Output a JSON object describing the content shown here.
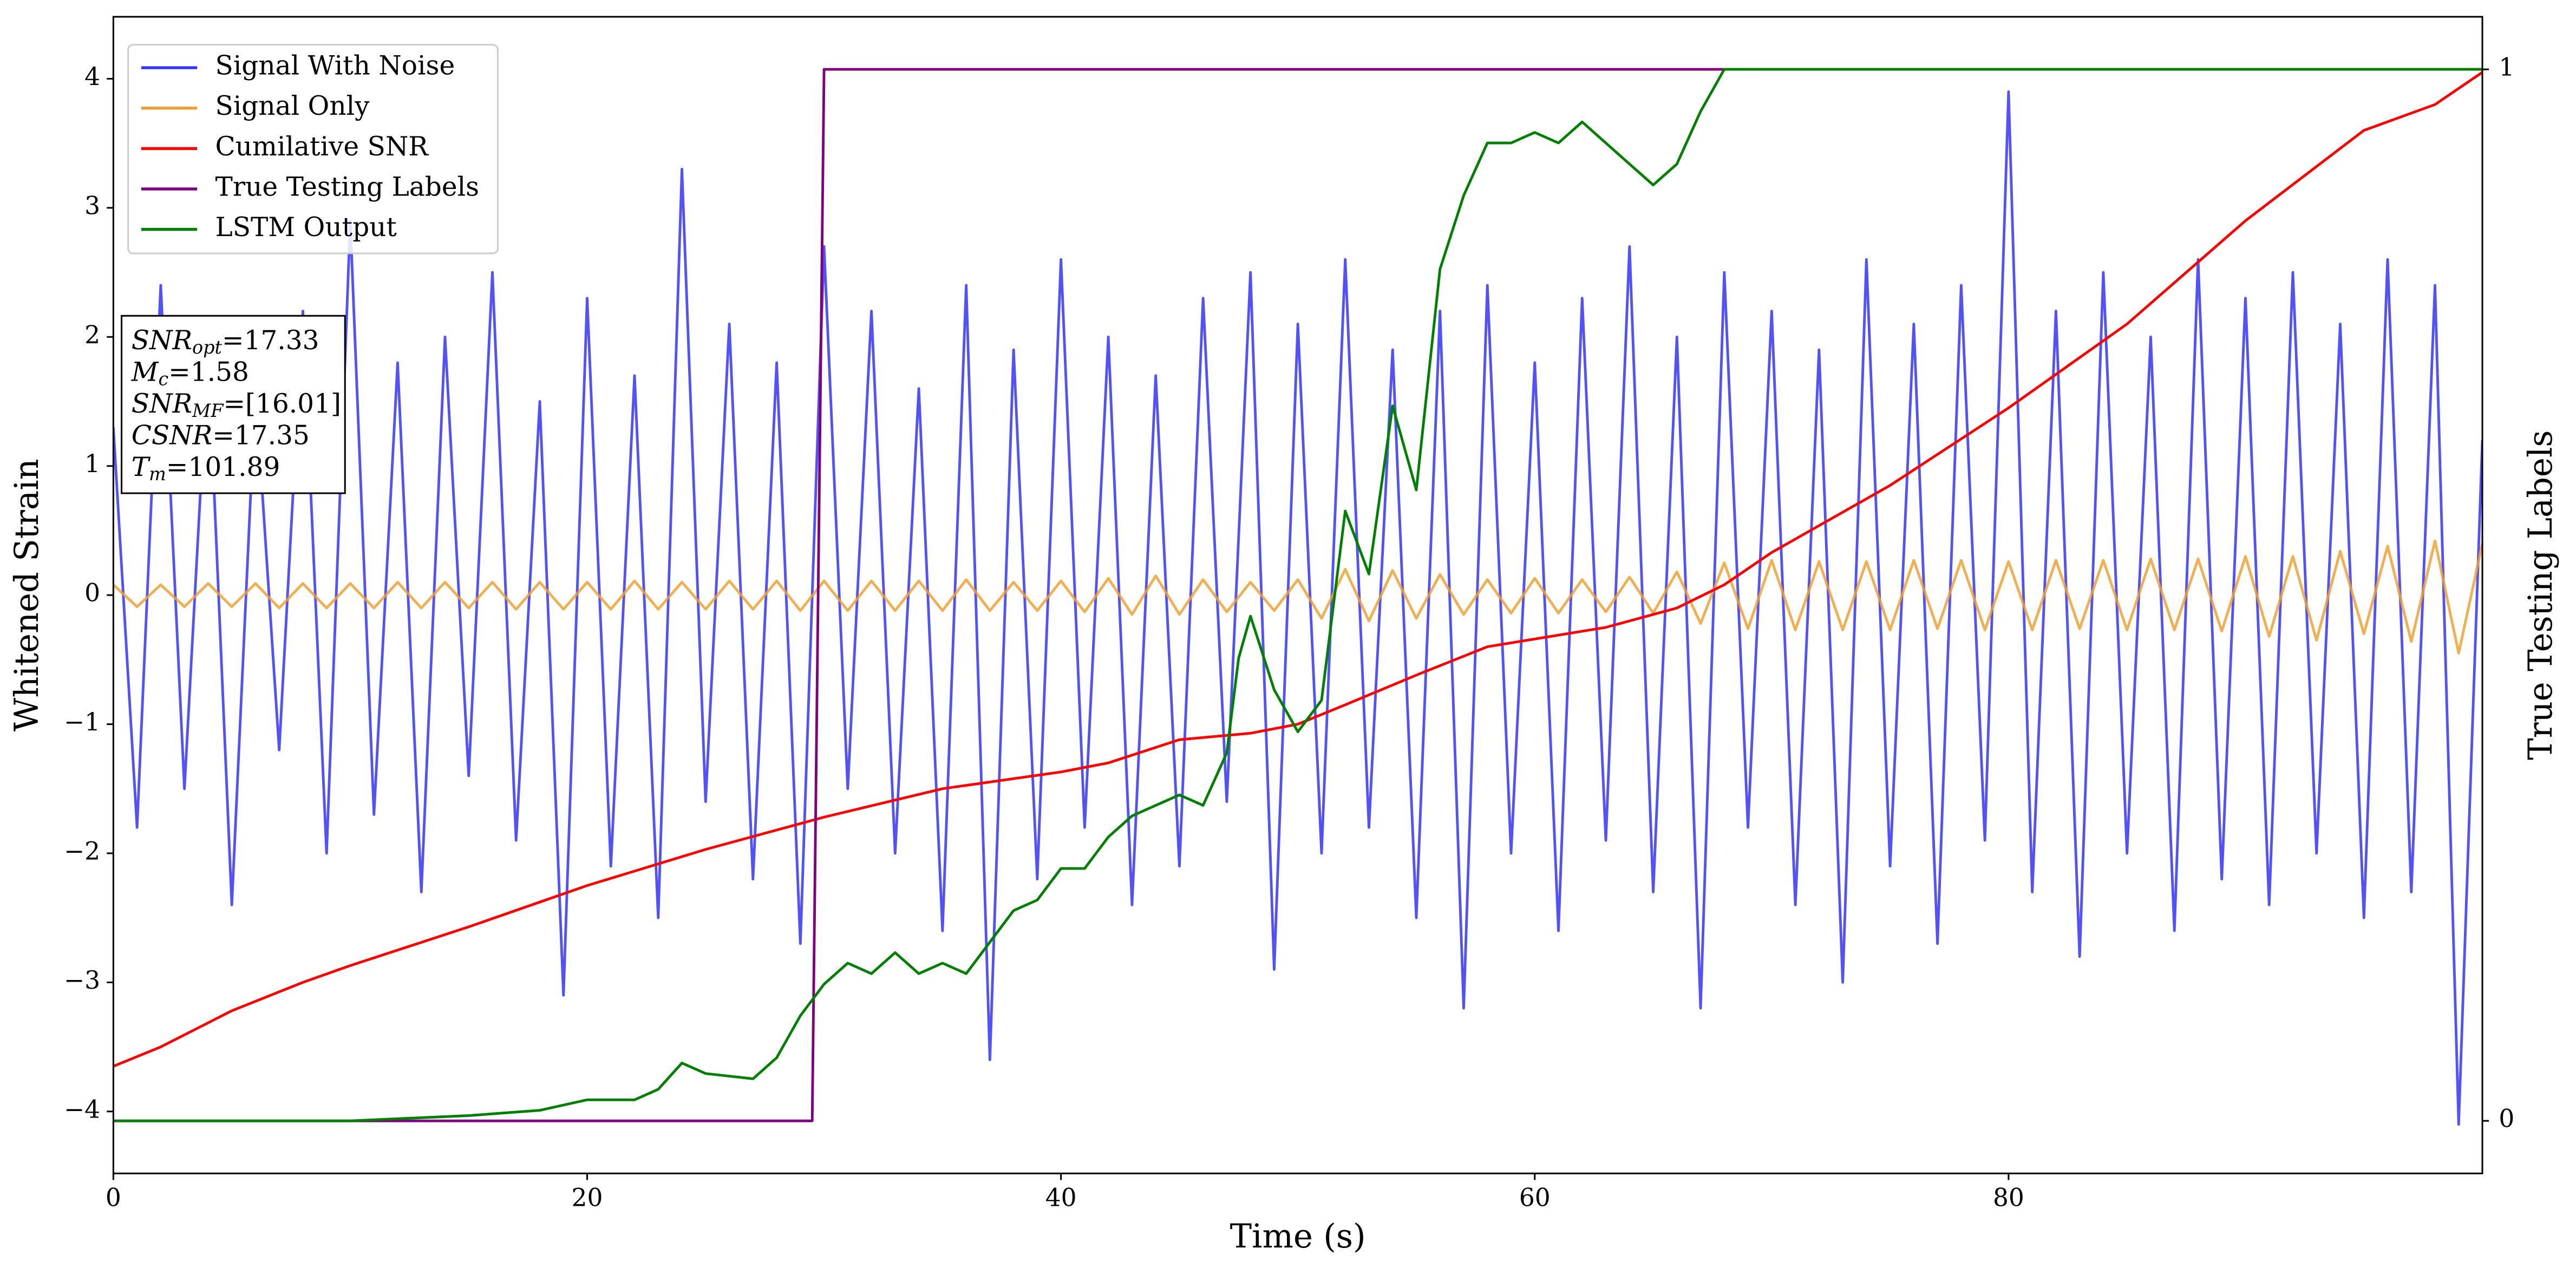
{
  "chart_data": {
    "type": "line",
    "xlabel": "Time (s)",
    "ylabel": "Whitened Strain",
    "y2label": "True Testing Labels",
    "xlim": [
      0,
      100
    ],
    "ylim": [
      -4.48,
      4.48
    ],
    "y2lim": [
      -0.05,
      1.05
    ],
    "xticks": [
      0,
      20,
      40,
      60,
      80
    ],
    "yticks": [
      {
        "value": -4,
        "label": "−4"
      },
      {
        "value": -3,
        "label": "−3"
      },
      {
        "value": -2,
        "label": "−2"
      },
      {
        "value": -1,
        "label": "−1"
      },
      0,
      1,
      2,
      3,
      4
    ],
    "y2ticks": [
      0,
      1
    ],
    "legend": "upper-left",
    "annotation": [
      {
        "main": "SNR",
        "sub": "opt",
        "rest": "=17.33"
      },
      {
        "main": "M",
        "sub": "c",
        "rest": "=1.58"
      },
      {
        "main": "SNR",
        "sub": "MF",
        "rest": "=[16.01]"
      },
      {
        "main": "CSNR",
        "sub": "",
        "rest": "=17.35"
      },
      {
        "main": "T",
        "sub": "m",
        "rest": "=101.89"
      }
    ],
    "series": [
      {
        "name": "Signal With Noise",
        "color": "#3333ff",
        "axis": "y",
        "x": [
          0,
          1,
          2,
          3,
          4,
          5,
          6,
          7,
          8,
          9,
          10,
          11,
          12,
          13,
          14,
          15,
          16,
          17,
          18,
          19,
          20,
          21,
          22,
          23,
          24,
          25,
          26,
          27,
          28,
          29,
          30,
          31,
          32,
          33,
          34,
          35,
          36,
          37,
          38,
          39,
          40,
          41,
          42,
          43,
          44,
          45,
          46,
          47,
          48,
          49,
          50,
          51,
          52,
          53,
          54,
          55,
          56,
          57,
          58,
          59,
          60,
          61,
          62,
          63,
          64,
          65,
          66,
          67,
          68,
          69,
          70,
          71,
          72,
          73,
          74,
          75,
          76,
          77,
          78,
          79,
          80,
          81,
          82,
          83,
          84,
          85,
          86,
          87,
          88,
          89,
          90,
          91,
          92,
          93,
          94,
          95,
          96,
          97,
          98,
          99,
          100
        ],
        "values": [
          1.3,
          -1.8,
          2.4,
          -1.5,
          1.9,
          -2.4,
          1.6,
          -1.2,
          2.2,
          -2.0,
          2.9,
          -1.7,
          1.8,
          -2.3,
          2.0,
          -1.4,
          2.5,
          -1.9,
          1.5,
          -3.1,
          2.3,
          -2.1,
          1.7,
          -2.5,
          3.3,
          -1.6,
          2.1,
          -2.2,
          1.8,
          -2.7,
          2.7,
          -1.5,
          2.2,
          -2.0,
          1.6,
          -2.6,
          2.4,
          -3.6,
          1.9,
          -2.2,
          2.6,
          -1.8,
          2.0,
          -2.4,
          1.7,
          -2.1,
          2.3,
          -1.6,
          2.5,
          -2.9,
          2.1,
          -2.0,
          2.6,
          -1.8,
          1.9,
          -2.5,
          2.2,
          -3.2,
          2.4,
          -2.0,
          1.8,
          -2.6,
          2.3,
          -1.9,
          2.7,
          -2.3,
          2.0,
          -3.2,
          2.5,
          -1.8,
          2.2,
          -2.4,
          1.9,
          -3.0,
          2.6,
          -2.1,
          2.1,
          -2.7,
          2.4,
          -1.9,
          3.9,
          -2.3,
          2.2,
          -2.8,
          2.5,
          -2.0,
          2.0,
          -2.6,
          2.6,
          -2.2,
          2.3,
          -2.4,
          2.5,
          -2.0,
          2.1,
          -2.5,
          2.6,
          -2.3,
          2.4,
          -4.1,
          1.2
        ]
      },
      {
        "name": "Signal Only",
        "color": "#f0a030",
        "axis": "y",
        "x": [
          0,
          1,
          2,
          3,
          4,
          5,
          6,
          7,
          8,
          9,
          10,
          11,
          12,
          13,
          14,
          15,
          16,
          17,
          18,
          19,
          20,
          21,
          22,
          23,
          24,
          25,
          26,
          27,
          28,
          29,
          30,
          31,
          32,
          33,
          34,
          35,
          36,
          37,
          38,
          39,
          40,
          41,
          42,
          43,
          44,
          45,
          46,
          47,
          48,
          49,
          50,
          51,
          52,
          53,
          54,
          55,
          56,
          57,
          58,
          59,
          60,
          61,
          62,
          63,
          64,
          65,
          66,
          67,
          68,
          69,
          70,
          71,
          72,
          73,
          74,
          75,
          76,
          77,
          78,
          79,
          80,
          81,
          82,
          83,
          84,
          85,
          86,
          87,
          88,
          89,
          90,
          91,
          92,
          93,
          94,
          95,
          96,
          97,
          98,
          99,
          100
        ],
        "values": [
          0.08,
          -0.09,
          0.08,
          -0.09,
          0.09,
          -0.09,
          0.09,
          -0.1,
          0.09,
          -0.1,
          0.09,
          -0.1,
          0.1,
          -0.1,
          0.1,
          -0.1,
          0.1,
          -0.11,
          0.1,
          -0.11,
          0.1,
          -0.11,
          0.11,
          -0.11,
          0.1,
          -0.11,
          0.11,
          -0.11,
          0.11,
          -0.12,
          0.11,
          -0.12,
          0.11,
          -0.12,
          0.11,
          -0.12,
          0.12,
          -0.12,
          0.1,
          -0.12,
          0.11,
          -0.13,
          0.13,
          -0.15,
          0.15,
          -0.15,
          0.12,
          -0.13,
          0.1,
          -0.12,
          0.12,
          -0.18,
          0.2,
          -0.2,
          0.19,
          -0.18,
          0.16,
          -0.15,
          0.12,
          -0.14,
          0.13,
          -0.14,
          0.12,
          -0.13,
          0.14,
          -0.14,
          0.18,
          -0.22,
          0.25,
          -0.26,
          0.27,
          -0.27,
          0.26,
          -0.27,
          0.26,
          -0.27,
          0.27,
          -0.26,
          0.27,
          -0.27,
          0.26,
          -0.27,
          0.27,
          -0.26,
          0.27,
          -0.27,
          0.28,
          -0.27,
          0.28,
          -0.28,
          0.3,
          -0.32,
          0.3,
          -0.35,
          0.34,
          -0.3,
          0.38,
          -0.36,
          0.42,
          -0.45,
          0.4
        ]
      },
      {
        "name": "Cumilative SNR",
        "color": "#ff0000",
        "axis": "y",
        "x": [
          0,
          2,
          5,
          8,
          10,
          15,
          20,
          25,
          30,
          35,
          40,
          42,
          45,
          48,
          50,
          52,
          55,
          58,
          60,
          63,
          65,
          66,
          68,
          70,
          75,
          80,
          85,
          90,
          95,
          98,
          100
        ],
        "values": [
          -3.65,
          -3.5,
          -3.22,
          -3.0,
          -2.87,
          -2.57,
          -2.25,
          -1.97,
          -1.72,
          -1.5,
          -1.37,
          -1.3,
          -1.12,
          -1.07,
          -1.0,
          -0.85,
          -0.62,
          -0.4,
          -0.34,
          -0.25,
          -0.15,
          -0.1,
          0.08,
          0.33,
          0.85,
          1.45,
          2.1,
          2.9,
          3.6,
          3.8,
          4.05
        ]
      },
      {
        "name": "True Testing Labels",
        "color": "#800080",
        "axis": "y2",
        "x": [
          0,
          29.5,
          30,
          100
        ],
        "values": [
          0,
          0,
          1,
          1
        ]
      },
      {
        "name": "LSTM Output",
        "color": "#008000",
        "axis": "y2",
        "x": [
          0,
          10,
          15,
          18,
          20,
          22,
          23,
          24,
          25,
          27,
          28,
          29,
          30,
          31,
          32,
          33,
          34,
          35,
          36,
          37,
          38,
          39,
          40,
          41,
          42,
          43,
          44,
          45,
          46,
          47,
          47.5,
          48,
          49,
          50,
          51,
          52,
          53,
          54,
          55,
          56,
          57,
          58,
          59,
          60,
          61,
          62,
          63,
          64,
          65,
          66,
          67,
          68,
          72,
          100
        ],
        "values": [
          0,
          0,
          0.005,
          0.01,
          0.02,
          0.02,
          0.03,
          0.055,
          0.045,
          0.04,
          0.06,
          0.1,
          0.13,
          0.15,
          0.14,
          0.16,
          0.14,
          0.15,
          0.14,
          0.17,
          0.2,
          0.21,
          0.24,
          0.24,
          0.27,
          0.29,
          0.3,
          0.31,
          0.3,
          0.35,
          0.44,
          0.48,
          0.41,
          0.37,
          0.4,
          0.58,
          0.52,
          0.68,
          0.6,
          0.81,
          0.88,
          0.93,
          0.93,
          0.94,
          0.93,
          0.95,
          0.93,
          0.91,
          0.89,
          0.91,
          0.96,
          1,
          1,
          1
        ]
      }
    ]
  }
}
